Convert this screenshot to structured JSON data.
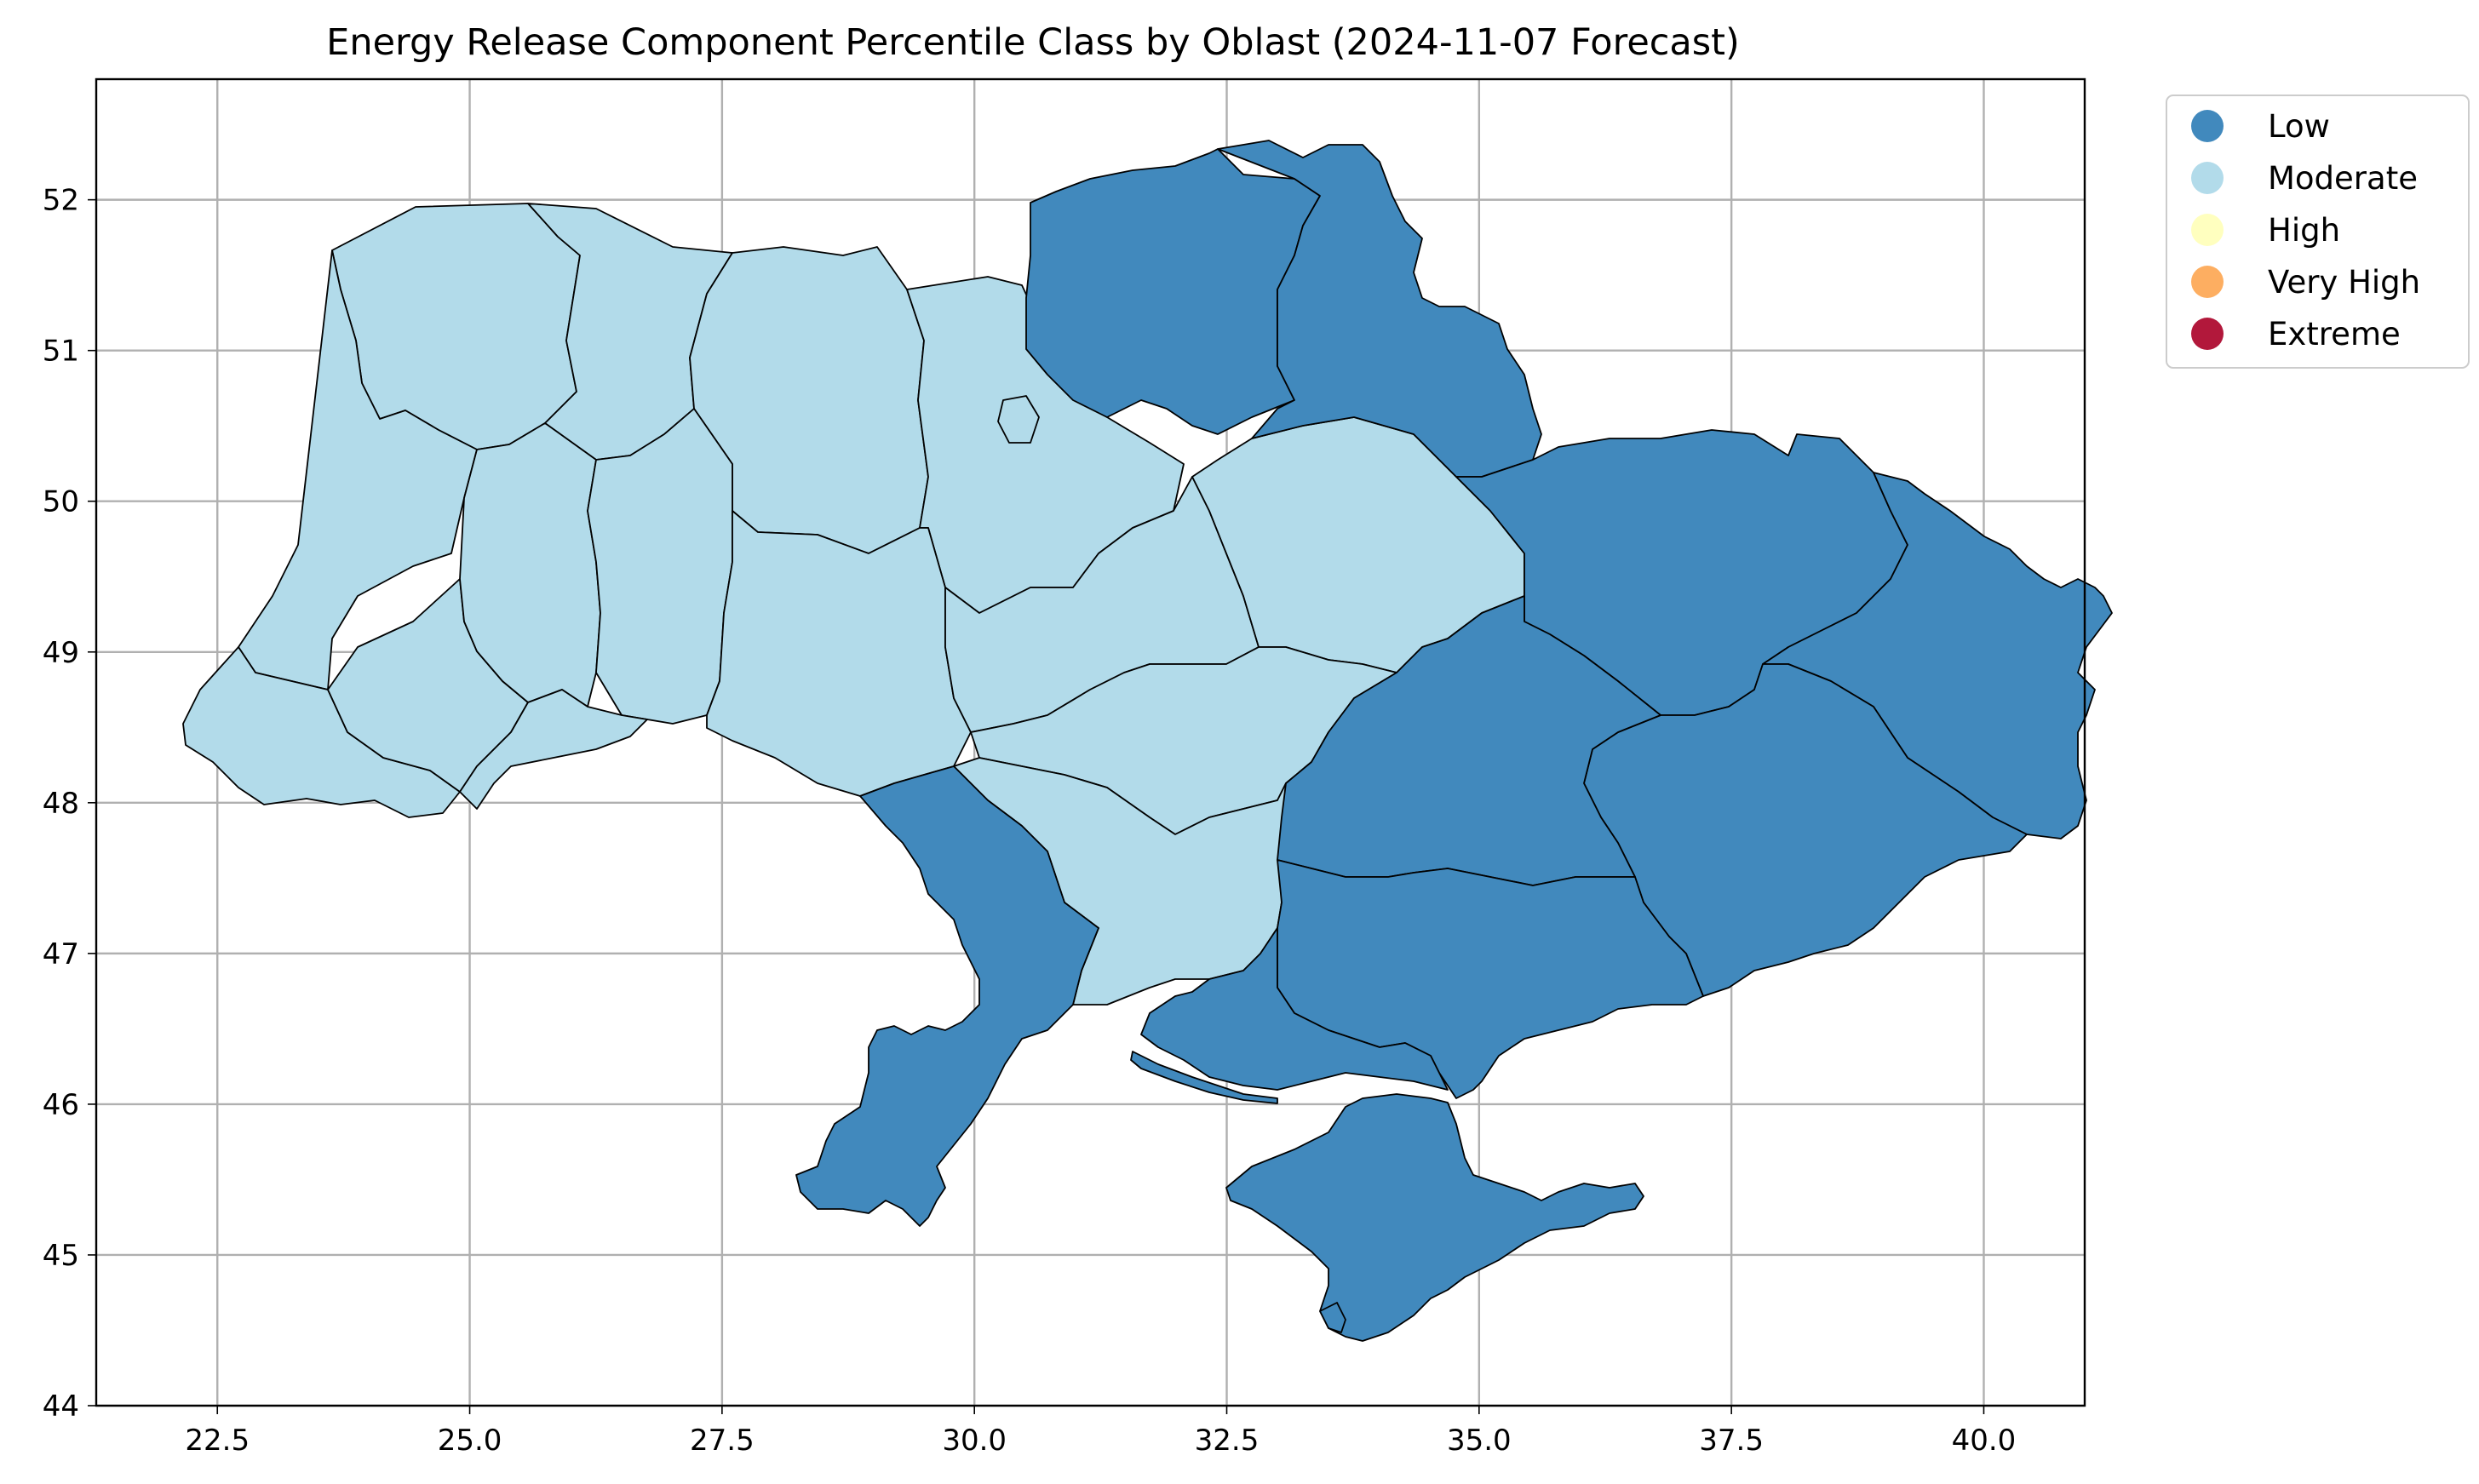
{
  "title": "Energy Release Component Percentile Class by Oblast (2024-11-07 Forecast)",
  "chart_data": {
    "type": "choropleth",
    "title": "Energy Release Component Percentile Class by Oblast (2024-11-07 Forecast)",
    "xlim": [
      21.3,
      41.0
    ],
    "ylim": [
      44.0,
      52.8
    ],
    "xticks": [
      "22.5",
      "25.0",
      "27.5",
      "30.0",
      "32.5",
      "35.0",
      "37.5",
      "40.0"
    ],
    "yticks": [
      "44",
      "45",
      "46",
      "47",
      "48",
      "49",
      "50",
      "51",
      "52"
    ],
    "grid": true,
    "legend_position": "outside-top-right",
    "classes": [
      {
        "label": "Low",
        "color": "#4189bd"
      },
      {
        "label": "Moderate",
        "color": "#b2dbea"
      },
      {
        "label": "High",
        "color": "#ffffbf"
      },
      {
        "label": "Very High",
        "color": "#fdae61"
      },
      {
        "label": "Extreme",
        "color": "#b2183b"
      }
    ],
    "regions_by_class": {
      "Low": [
        "Chernihiv",
        "Sumy",
        "Kharkiv",
        "Luhansk",
        "Donetsk",
        "Dnipropetrovsk",
        "Zaporizhzhia",
        "Kherson",
        "Odesa",
        "Crimea",
        "Sevastopol"
      ],
      "Moderate": [
        "Volyn",
        "Rivne",
        "Zhytomyr",
        "Kyiv",
        "Kyiv City",
        "Lviv",
        "Zakarpattia",
        "Ivano-Frankivsk",
        "Ternopil",
        "Khmelnytskyi",
        "Chernivtsi",
        "Vinnytsia",
        "Cherkasy",
        "Poltava",
        "Kirovohrad",
        "Mykolaiv"
      ],
      "High": [],
      "Very High": [],
      "Extreme": []
    }
  }
}
